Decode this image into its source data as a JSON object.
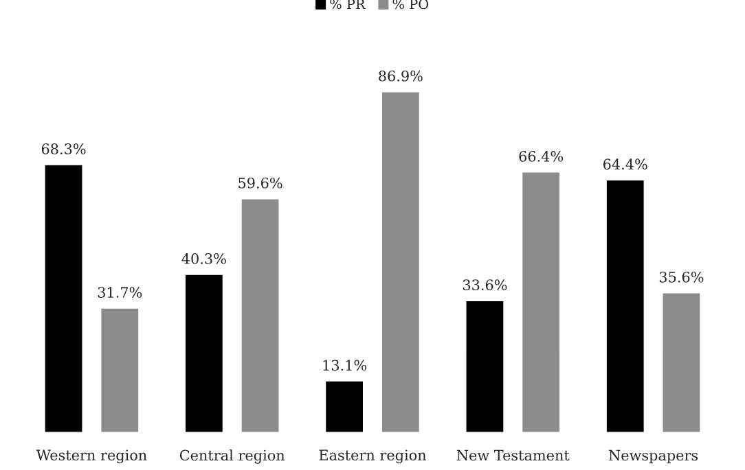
{
  "chart_data": {
    "type": "bar",
    "categories": [
      "Western region",
      "Central region",
      "Eastern region",
      "New Testament",
      "Newspapers"
    ],
    "series": [
      {
        "name": "% PR",
        "color": "#000000",
        "values": [
          68.3,
          40.3,
          13.1,
          33.6,
          64.4
        ],
        "value_labels": [
          "68.3%",
          "40.3%",
          "13.1%",
          "33.6%",
          "64.4%"
        ]
      },
      {
        "name": "% PO",
        "color": "#8c8c8c",
        "values": [
          31.7,
          59.6,
          86.9,
          66.4,
          35.6
        ],
        "value_labels": [
          "31.7%",
          "59.6%",
          "86.9%",
          "66.4%",
          "35.6%"
        ]
      }
    ],
    "legend": "top",
    "grid": false,
    "tick_labels": "x"
  }
}
